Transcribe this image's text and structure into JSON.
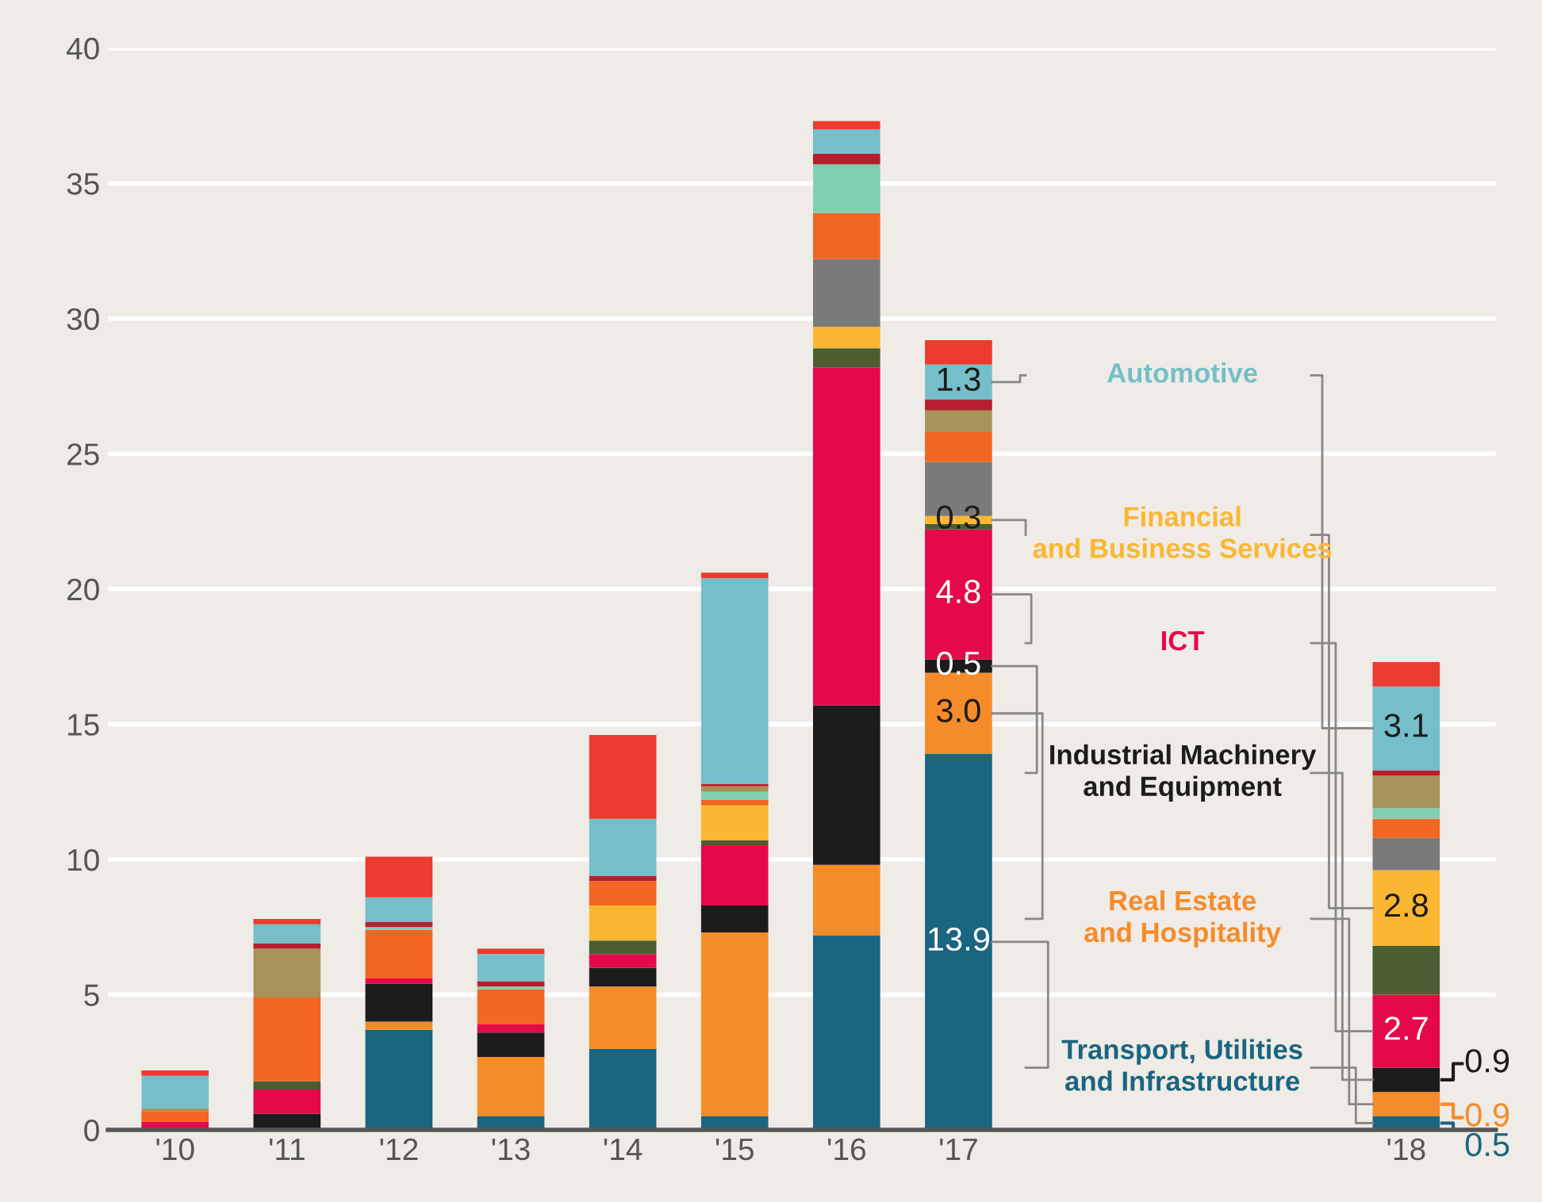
{
  "chart_data": {
    "type": "bar",
    "stacked": true,
    "categories": [
      "'10",
      "'11",
      "'12",
      "'13",
      "'14",
      "'15",
      "'16",
      "'17",
      null,
      null,
      null,
      "'18"
    ],
    "ylim": [
      0,
      40
    ],
    "yticks": [
      0,
      5,
      10,
      15,
      20,
      25,
      30,
      35,
      40
    ],
    "grid": "y",
    "legend": false,
    "series": [
      {
        "name": "Transport, Utilities and Infrastructure",
        "color": "#1a6580",
        "values": [
          0,
          0,
          3.7,
          0.5,
          3.0,
          0.5,
          7.2,
          13.9,
          null,
          null,
          null,
          0.5
        ],
        "value_labels": [
          null,
          null,
          null,
          null,
          null,
          null,
          null,
          "13.9",
          null,
          null,
          null,
          "0.5"
        ]
      },
      {
        "name": "Real Estate and Hospitality",
        "color": "#f68b2a",
        "values": [
          0,
          0,
          0.3,
          2.2,
          2.3,
          6.8,
          2.6,
          3.0,
          null,
          null,
          null,
          0.9
        ],
        "value_labels": [
          null,
          null,
          null,
          null,
          null,
          null,
          null,
          "3.0",
          null,
          null,
          null,
          "0.9"
        ]
      },
      {
        "name": "Industrial Machinery and Equipment",
        "color": "#1c1c1c",
        "values": [
          0,
          0.6,
          1.4,
          0.9,
          0.7,
          1.0,
          5.9,
          0.5,
          null,
          null,
          null,
          0.9
        ],
        "value_labels": [
          null,
          null,
          null,
          null,
          null,
          null,
          null,
          "0.5",
          null,
          null,
          null,
          "0.9"
        ]
      },
      {
        "name": "ICT",
        "color": "#e5094a",
        "values": [
          0.3,
          0.9,
          0.2,
          0.3,
          0.5,
          2.2,
          12.5,
          4.8,
          null,
          null,
          null,
          2.7
        ],
        "value_labels": [
          null,
          null,
          null,
          null,
          null,
          null,
          null,
          "4.8",
          null,
          null,
          null,
          "2.7"
        ]
      },
      {
        "color": "#4a5e32",
        "values": [
          0,
          0.3,
          0,
          0,
          0.5,
          0.2,
          0.7,
          0.2,
          null,
          null,
          null,
          1.8
        ]
      },
      {
        "name": "Financial and Business Services",
        "color": "#fbb731",
        "values": [
          0,
          0,
          0,
          0,
          1.3,
          1.3,
          0.8,
          0.3,
          null,
          null,
          null,
          2.8
        ],
        "value_labels": [
          null,
          null,
          null,
          null,
          null,
          null,
          null,
          "0.3",
          null,
          null,
          null,
          "2.8"
        ]
      },
      {
        "color": "#7a7a7a",
        "values": [
          0,
          0,
          0,
          0,
          0,
          0,
          2.5,
          2.0,
          null,
          null,
          null,
          1.2
        ]
      },
      {
        "color": "#f26522",
        "values": [
          0.4,
          3.1,
          1.8,
          1.3,
          0.9,
          0.2,
          1.7,
          1.1,
          null,
          null,
          null,
          0.7
        ]
      },
      {
        "color": "#7fcfb0",
        "values": [
          0,
          0,
          0.1,
          0.1,
          0,
          0.3,
          1.8,
          0,
          null,
          null,
          null,
          0.4
        ]
      },
      {
        "color": "#a8935a",
        "values": [
          0.1,
          1.8,
          0,
          0,
          0,
          0.2,
          0,
          0.8,
          null,
          null,
          null,
          1.2
        ]
      },
      {
        "color": "#b5202e",
        "values": [
          0,
          0.2,
          0.2,
          0.2,
          0.2,
          0.1,
          0.4,
          0.4,
          null,
          null,
          null,
          0.2
        ]
      },
      {
        "name": "Automotive",
        "color": "#74bfc9",
        "values": [
          1.2,
          0.7,
          0.9,
          1.0,
          2.1,
          7.6,
          0.9,
          1.3,
          null,
          null,
          null,
          3.1
        ],
        "value_labels": [
          null,
          null,
          null,
          null,
          null,
          null,
          null,
          "1.3",
          null,
          null,
          null,
          "3.1"
        ]
      },
      {
        "color": "#ec3b2f",
        "values": [
          0.2,
          0.2,
          1.5,
          0.2,
          3.1,
          0.2,
          0.3,
          0.9,
          null,
          null,
          null,
          0.9
        ]
      }
    ]
  }
}
